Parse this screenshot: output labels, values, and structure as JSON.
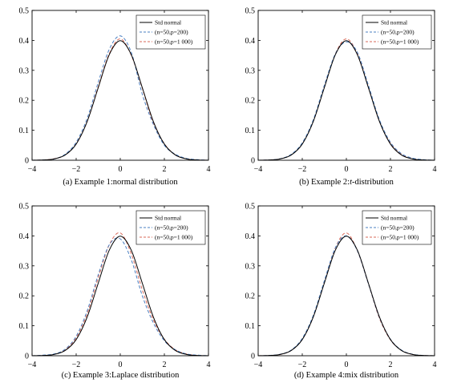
{
  "chart_data": [
    {
      "type": "line",
      "panel": "a",
      "caption": "(a) Example 1:normal distribution",
      "xlim": [
        -4,
        4
      ],
      "ylim": [
        0,
        0.5
      ],
      "xticks": [
        -4,
        -2,
        0,
        2,
        4
      ],
      "yticks": [
        0,
        0.1,
        0.2,
        0.3,
        0.4,
        0.5
      ],
      "legend_position": "top-right",
      "series": [
        {
          "name": "Std normal",
          "color": "#000000",
          "dash": "solid",
          "x": [
            -4,
            -3.5,
            -3,
            -2.5,
            -2,
            -1.5,
            -1,
            -0.5,
            0,
            0.5,
            1,
            1.5,
            2,
            2.5,
            3,
            3.5,
            4
          ],
          "y": [
            0.0001,
            0.0009,
            0.0044,
            0.0175,
            0.054,
            0.1295,
            0.242,
            0.352,
            0.3989,
            0.352,
            0.242,
            0.1295,
            0.054,
            0.0175,
            0.0044,
            0.0009,
            0.0001
          ]
        },
        {
          "name": "(n=50,p=200)",
          "color": "#4a7fc1",
          "dash": "dashed",
          "x": [
            -4,
            -3.5,
            -3,
            -2.5,
            -2,
            -1.5,
            -1,
            -0.5,
            0,
            0.5,
            1,
            1.5,
            2,
            2.5,
            3,
            3.5,
            4
          ],
          "y": [
            0.0,
            0.001,
            0.004,
            0.02,
            0.06,
            0.14,
            0.26,
            0.37,
            0.415,
            0.36,
            0.22,
            0.12,
            0.05,
            0.02,
            0.006,
            0.002,
            0.0
          ]
        },
        {
          "name": "(n=50,p=1 000)",
          "color": "#d96a5a",
          "dash": "dashed",
          "x": [
            -4,
            -3.5,
            -3,
            -2.5,
            -2,
            -1.5,
            -1,
            -0.5,
            0,
            0.5,
            1,
            1.5,
            2,
            2.5,
            3,
            3.5,
            4
          ],
          "y": [
            0.0,
            0.001,
            0.005,
            0.018,
            0.055,
            0.13,
            0.245,
            0.355,
            0.405,
            0.35,
            0.24,
            0.125,
            0.055,
            0.018,
            0.005,
            0.001,
            0.0
          ]
        }
      ]
    },
    {
      "type": "line",
      "panel": "b",
      "caption_prefix": "(b) Example 2:",
      "caption_italic": "t",
      "caption_suffix": "-distribution",
      "xlim": [
        -4,
        4
      ],
      "ylim": [
        0,
        0.5
      ],
      "xticks": [
        -4,
        -2,
        0,
        2,
        4
      ],
      "yticks": [
        0,
        0.1,
        0.2,
        0.3,
        0.4,
        0.5
      ],
      "legend_position": "top-right",
      "series": [
        {
          "name": "Std normal",
          "color": "#000000",
          "dash": "solid",
          "x": [
            -4,
            -3.5,
            -3,
            -2.5,
            -2,
            -1.5,
            -1,
            -0.5,
            0,
            0.5,
            1,
            1.5,
            2,
            2.5,
            3,
            3.5,
            4
          ],
          "y": [
            0.0001,
            0.0009,
            0.0044,
            0.0175,
            0.054,
            0.1295,
            0.242,
            0.352,
            0.3989,
            0.352,
            0.242,
            0.1295,
            0.054,
            0.0175,
            0.0044,
            0.0009,
            0.0001
          ]
        },
        {
          "name": "(n=50,p=200)",
          "color": "#4a7fc1",
          "dash": "dashed",
          "x": [
            -4,
            -3.5,
            -3,
            -2.5,
            -2,
            -1.5,
            -1,
            -0.5,
            0,
            0.5,
            1,
            1.5,
            2,
            2.5,
            3,
            3.5,
            4
          ],
          "y": [
            0.0,
            0.001,
            0.005,
            0.02,
            0.058,
            0.135,
            0.25,
            0.355,
            0.395,
            0.36,
            0.25,
            0.135,
            0.06,
            0.022,
            0.007,
            0.002,
            0.0
          ]
        },
        {
          "name": "(n=50,p=1 000)",
          "color": "#d96a5a",
          "dash": "dashed",
          "x": [
            -4,
            -3.5,
            -3,
            -2.5,
            -2,
            -1.5,
            -1,
            -0.5,
            0,
            0.5,
            1,
            1.5,
            2,
            2.5,
            3,
            3.5,
            4
          ],
          "y": [
            0.0,
            0.001,
            0.005,
            0.019,
            0.056,
            0.13,
            0.245,
            0.355,
            0.405,
            0.355,
            0.245,
            0.13,
            0.058,
            0.02,
            0.006,
            0.001,
            0.0
          ]
        }
      ]
    },
    {
      "type": "line",
      "panel": "c",
      "caption": "(c) Example 3:Laplace distribution",
      "xlim": [
        -4,
        4
      ],
      "ylim": [
        0,
        0.5
      ],
      "xticks": [
        -4,
        -2,
        0,
        2,
        4
      ],
      "yticks": [
        0,
        0.1,
        0.2,
        0.3,
        0.4,
        0.5
      ],
      "legend_position": "top-right",
      "series": [
        {
          "name": "Std normal",
          "color": "#000000",
          "dash": "solid",
          "x": [
            -4,
            -3.5,
            -3,
            -2.5,
            -2,
            -1.5,
            -1,
            -0.5,
            0,
            0.5,
            1,
            1.5,
            2,
            2.5,
            3,
            3.5,
            4
          ],
          "y": [
            0.0001,
            0.0009,
            0.0044,
            0.0175,
            0.054,
            0.1295,
            0.242,
            0.352,
            0.3989,
            0.352,
            0.242,
            0.1295,
            0.054,
            0.0175,
            0.0044,
            0.0009,
            0.0001
          ]
        },
        {
          "name": "(n=50,p=200)",
          "color": "#4a7fc1",
          "dash": "dashed",
          "x": [
            -4,
            -3.5,
            -3,
            -2.5,
            -2,
            -1.5,
            -1,
            -0.5,
            0,
            0.5,
            1,
            1.5,
            2,
            2.5,
            3,
            3.5,
            4
          ],
          "y": [
            0.0,
            0.002,
            0.006,
            0.022,
            0.065,
            0.15,
            0.27,
            0.37,
            0.39,
            0.32,
            0.2,
            0.11,
            0.05,
            0.02,
            0.006,
            0.002,
            0.0
          ]
        },
        {
          "name": "(n=50,p=1 000)",
          "color": "#d96a5a",
          "dash": "dashed",
          "x": [
            -4,
            -3.5,
            -3,
            -2.5,
            -2,
            -1.5,
            -1,
            -0.5,
            0,
            0.5,
            1,
            1.5,
            2,
            2.5,
            3,
            3.5,
            4
          ],
          "y": [
            0.0,
            0.001,
            0.005,
            0.02,
            0.06,
            0.14,
            0.26,
            0.37,
            0.41,
            0.34,
            0.22,
            0.12,
            0.055,
            0.02,
            0.006,
            0.001,
            0.0
          ]
        }
      ]
    },
    {
      "type": "line",
      "panel": "d",
      "caption": "(d) Example 4:mix distribution",
      "xlim": [
        -4,
        4
      ],
      "ylim": [
        0,
        0.5
      ],
      "xticks": [
        -4,
        -2,
        0,
        2,
        4
      ],
      "yticks": [
        0,
        0.1,
        0.2,
        0.3,
        0.4,
        0.5
      ],
      "legend_position": "top-right",
      "series": [
        {
          "name": "Std normal",
          "color": "#000000",
          "dash": "solid",
          "x": [
            -4,
            -3.5,
            -3,
            -2.5,
            -2,
            -1.5,
            -1,
            -0.5,
            0,
            0.5,
            1,
            1.5,
            2,
            2.5,
            3,
            3.5,
            4
          ],
          "y": [
            0.0001,
            0.0009,
            0.0044,
            0.0175,
            0.054,
            0.1295,
            0.242,
            0.352,
            0.3989,
            0.352,
            0.242,
            0.1295,
            0.054,
            0.0175,
            0.0044,
            0.0009,
            0.0001
          ]
        },
        {
          "name": "(n=50,p=200)",
          "color": "#4a7fc1",
          "dash": "dashed",
          "x": [
            -4,
            -3.5,
            -3,
            -2.5,
            -2,
            -1.5,
            -1,
            -0.5,
            0,
            0.5,
            1,
            1.5,
            2,
            2.5,
            3,
            3.5,
            4
          ],
          "y": [
            0.0,
            0.001,
            0.005,
            0.019,
            0.058,
            0.135,
            0.25,
            0.36,
            0.4,
            0.35,
            0.24,
            0.128,
            0.055,
            0.019,
            0.005,
            0.001,
            0.0
          ]
        },
        {
          "name": "(n=50,p=1 000)",
          "color": "#d96a5a",
          "dash": "dashed",
          "x": [
            -4,
            -3.5,
            -3,
            -2.5,
            -2,
            -1.5,
            -1,
            -0.5,
            0,
            0.5,
            1,
            1.5,
            2,
            2.5,
            3,
            3.5,
            4
          ],
          "y": [
            0.0,
            0.001,
            0.004,
            0.018,
            0.055,
            0.13,
            0.245,
            0.36,
            0.41,
            0.35,
            0.24,
            0.125,
            0.053,
            0.018,
            0.004,
            0.001,
            0.0
          ]
        }
      ]
    }
  ]
}
